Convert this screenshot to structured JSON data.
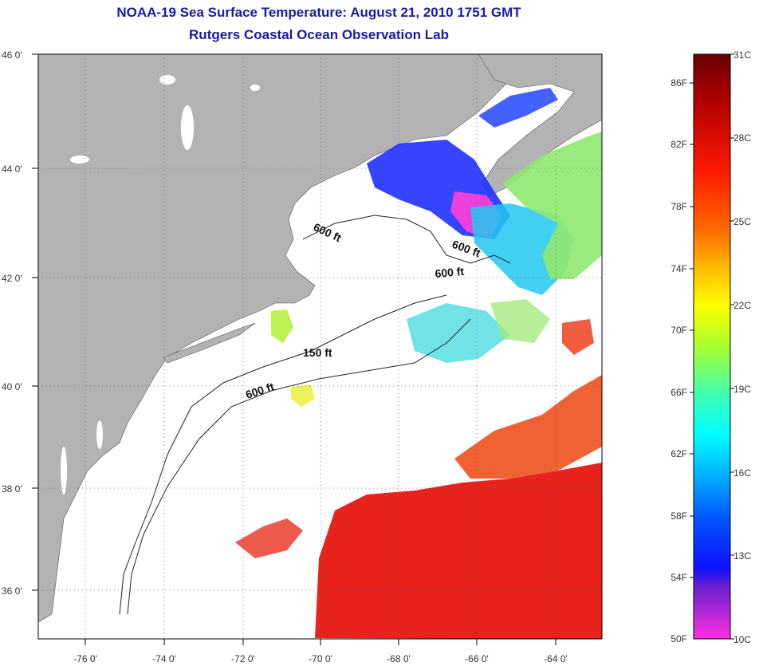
{
  "title": {
    "line1": "NOAA-19 Sea Surface Temperature:  August 21, 2010 1751 GMT",
    "line2": "Rutgers Coastal Ocean Observation Lab"
  },
  "map": {
    "lat_labels": [
      "46 0'",
      "44 0'",
      "42 0'",
      "40 0'",
      "38 0'",
      "36 0'"
    ],
    "lon_labels": [
      "-76 0'",
      "-74 0'",
      "-72 0'",
      "-70 0'",
      "-68 0'",
      "-66 0'",
      "-64 0'"
    ],
    "contour_labels": [
      "600 ft",
      "600 ft",
      "600 ft",
      "150 ft",
      "600 ft"
    ]
  },
  "colorbar": {
    "fahrenheit": [
      "86F",
      "82F",
      "78F",
      "74F",
      "70F",
      "66F",
      "62F",
      "58F",
      "54F",
      "50F"
    ],
    "celsius": [
      "31C",
      "28C",
      "25C",
      "22C",
      "19C",
      "16C",
      "13C",
      "10C"
    ]
  },
  "colors": {
    "land": "#b3b3b3",
    "ocean_warm": "#e8221c",
    "title": "#1a1aa6"
  }
}
